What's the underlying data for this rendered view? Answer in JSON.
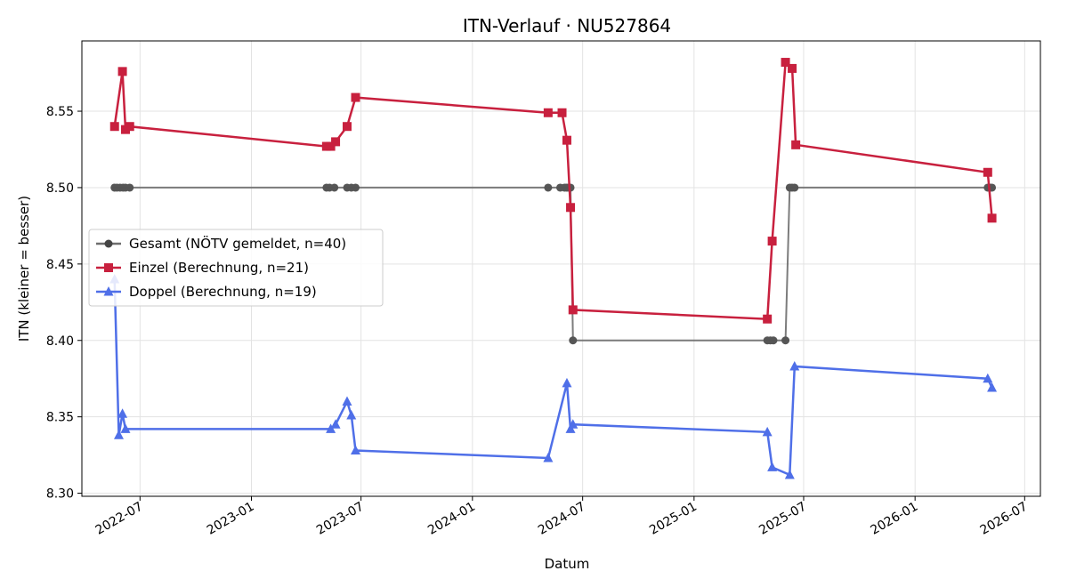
{
  "chart_data": {
    "type": "line",
    "title": "ITN-Verlauf · NU527864",
    "xlabel": "Datum",
    "ylabel": "ITN  (kleiner = besser)",
    "x_ticks": [
      "2022-07",
      "2023-01",
      "2023-07",
      "2024-01",
      "2024-07",
      "2025-01",
      "2025-07",
      "2026-01",
      "2026-07"
    ],
    "y_ticks": [
      "8.30",
      "8.35",
      "8.40",
      "8.45",
      "8.50",
      "8.55"
    ],
    "xlim": [
      "2022-03-27",
      "2026-07-27"
    ],
    "ylim": [
      8.298,
      8.596
    ],
    "grid": true,
    "legend_position": "center-left",
    "series": [
      {
        "name": "Gesamt (NÖTV gemeldet, n=40)",
        "color": "#6e6e6e",
        "marker": "circle",
        "points": [
          [
            "2022-05-20",
            8.5
          ],
          [
            "2022-05-24",
            8.5
          ],
          [
            "2022-05-29",
            8.5
          ],
          [
            "2022-06-03",
            8.5
          ],
          [
            "2022-06-07",
            8.5
          ],
          [
            "2022-06-14",
            8.5
          ],
          [
            "2023-05-05",
            8.5
          ],
          [
            "2023-05-10",
            8.5
          ],
          [
            "2023-05-18",
            8.5
          ],
          [
            "2023-06-08",
            8.5
          ],
          [
            "2023-06-15",
            8.5
          ],
          [
            "2023-06-22",
            8.5
          ],
          [
            "2024-05-05",
            8.5
          ],
          [
            "2024-05-25",
            8.5
          ],
          [
            "2024-06-01",
            8.5
          ],
          [
            "2024-06-05",
            8.5
          ],
          [
            "2024-06-08",
            8.5
          ],
          [
            "2024-06-11",
            8.5
          ],
          [
            "2024-06-15",
            8.4
          ],
          [
            "2025-05-02",
            8.4
          ],
          [
            "2025-05-07",
            8.4
          ],
          [
            "2025-05-12",
            8.4
          ],
          [
            "2025-06-01",
            8.4
          ],
          [
            "2025-06-08",
            8.5
          ],
          [
            "2025-06-12",
            8.5
          ],
          [
            "2025-06-16",
            8.5
          ],
          [
            "2026-05-01",
            8.5
          ],
          [
            "2026-05-05",
            8.5
          ],
          [
            "2026-05-08",
            8.5
          ]
        ]
      },
      {
        "name": "Einzel (Berechnung, n=21)",
        "color": "#c8203e",
        "marker": "square",
        "points": [
          [
            "2022-05-20",
            8.54
          ],
          [
            "2022-06-02",
            8.576
          ],
          [
            "2022-06-07",
            8.538
          ],
          [
            "2022-06-14",
            8.54
          ],
          [
            "2023-05-05",
            8.527
          ],
          [
            "2023-05-12",
            8.527
          ],
          [
            "2023-05-20",
            8.53
          ],
          [
            "2023-06-08",
            8.54
          ],
          [
            "2023-06-22",
            8.559
          ],
          [
            "2024-05-05",
            8.549
          ],
          [
            "2024-05-28",
            8.549
          ],
          [
            "2024-06-05",
            8.531
          ],
          [
            "2024-06-11",
            8.487
          ],
          [
            "2024-06-15",
            8.42
          ],
          [
            "2025-05-02",
            8.414
          ],
          [
            "2025-05-10",
            8.465
          ],
          [
            "2025-06-01",
            8.582
          ],
          [
            "2025-06-12",
            8.578
          ],
          [
            "2025-06-18",
            8.528
          ],
          [
            "2026-05-01",
            8.51
          ],
          [
            "2026-05-08",
            8.48
          ]
        ]
      },
      {
        "name": "Doppel (Berechnung, n=19)",
        "color": "#4f6fe8",
        "marker": "triangle",
        "points": [
          [
            "2022-05-20",
            8.44
          ],
          [
            "2022-05-27",
            8.338
          ],
          [
            "2022-06-02",
            8.352
          ],
          [
            "2022-06-07",
            8.342
          ],
          [
            "2023-05-12",
            8.342
          ],
          [
            "2023-05-20",
            8.345
          ],
          [
            "2023-06-08",
            8.36
          ],
          [
            "2023-06-15",
            8.351
          ],
          [
            "2023-06-22",
            8.328
          ],
          [
            "2024-05-05",
            8.323
          ],
          [
            "2024-06-05",
            8.372
          ],
          [
            "2024-06-11",
            8.342
          ],
          [
            "2024-06-15",
            8.345
          ],
          [
            "2025-05-02",
            8.34
          ],
          [
            "2025-05-10",
            8.317
          ],
          [
            "2025-06-08",
            8.312
          ],
          [
            "2025-06-16",
            8.383
          ],
          [
            "2026-05-01",
            8.375
          ],
          [
            "2026-05-08",
            8.369
          ]
        ]
      }
    ]
  }
}
